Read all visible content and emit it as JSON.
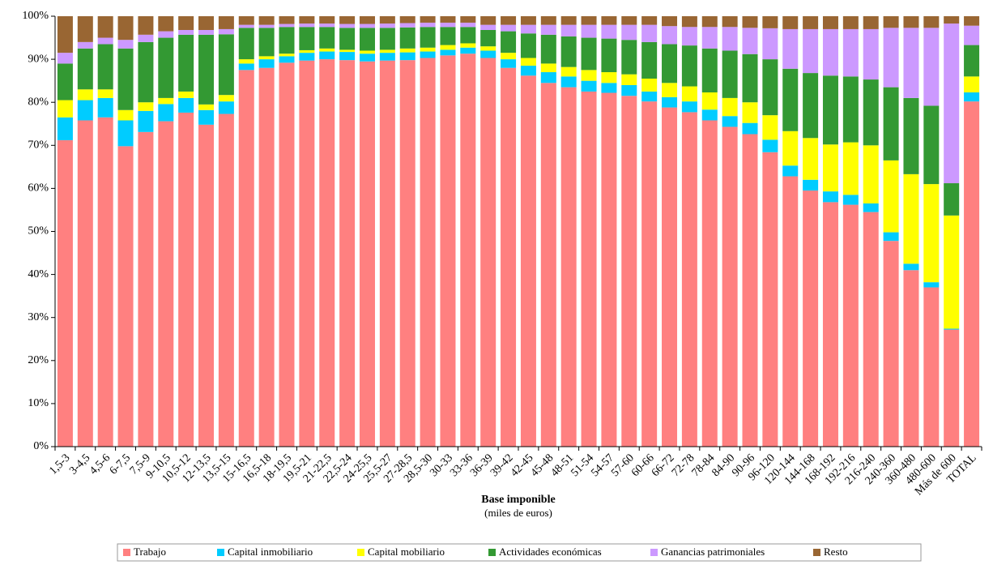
{
  "chart_data": {
    "type": "stacked_bar",
    "x_label": "Base imponible",
    "x_sublabel": "(miles de euros)",
    "categories": [
      "1,5-3",
      "3-4,5",
      "4,5-6",
      "6-7,5",
      "7,5-9",
      "9-10,5",
      "10,5-12",
      "12-13,5",
      "13,5-15",
      "15-16,5",
      "16,5-18",
      "18-19,5",
      "19,5-21",
      "21-22,5",
      "22,5-24",
      "24-25,5",
      "25,5-27",
      "27-28,5",
      "28,5-30",
      "30-33",
      "33-36",
      "36-39",
      "39-42",
      "42-45",
      "45-48",
      "48-51",
      "51-54",
      "54-57",
      "57-60",
      "60-66",
      "66-72",
      "72-78",
      "78-84",
      "84-90",
      "90-96",
      "96-120",
      "120-144",
      "144-168",
      "168-192",
      "192-216",
      "216-240",
      "240-360",
      "360-480",
      "480-600",
      "Más de 600",
      "TOTAL"
    ],
    "series": [
      {
        "name": "Trabajo",
        "color": "#ff8080",
        "values": [
          71.2,
          75.8,
          76.5,
          69.8,
          73.1,
          75.6,
          77.6,
          74.8,
          77.3,
          87.5,
          88,
          89.2,
          89.7,
          90,
          89.8,
          89.5,
          89.7,
          89.8,
          90.3,
          90.9,
          91.3,
          90.3,
          88,
          86.2,
          84.5,
          83.5,
          82.5,
          82.2,
          81.5,
          80.2,
          78.8,
          77.7,
          75.8,
          74.3,
          72.6,
          68.4,
          62.8,
          59.5,
          56.8,
          56.2,
          54.5,
          47.8,
          41,
          37,
          27.2,
          80.2
        ]
      },
      {
        "name": "Capital inmobiliario",
        "color": "#00ccff",
        "values": [
          5.3,
          4.7,
          4.5,
          6.0,
          4.9,
          4.0,
          3.4,
          3.4,
          2.9,
          1.5,
          2.0,
          1.5,
          1.8,
          1.8,
          1.9,
          1.8,
          1.8,
          1.8,
          1.5,
          1.3,
          1.4,
          1.7,
          2.0,
          2.3,
          2.5,
          2.5,
          2.5,
          2.3,
          2.5,
          2.3,
          2.4,
          2.5,
          2.5,
          2.5,
          2.6,
          2.9,
          2.5,
          2.5,
          2.5,
          2.3,
          2.0,
          2.0,
          1.5,
          1.2,
          0.2,
          2.1
        ]
      },
      {
        "name": "Capital mobiliario",
        "color": "#ffff00",
        "values": [
          4.0,
          2.5,
          2.0,
          2.4,
          2.0,
          1.4,
          1.5,
          1.3,
          1.5,
          1.0,
          0.7,
          0.6,
          0.6,
          0.7,
          0.5,
          0.7,
          0.7,
          0.9,
          0.9,
          1.1,
          1.0,
          1.0,
          1.5,
          1.8,
          2.0,
          2.2,
          2.5,
          2.5,
          2.5,
          3.0,
          3.3,
          3.5,
          4.0,
          4.2,
          4.8,
          5.7,
          8.0,
          9.7,
          10.9,
          12.2,
          13.5,
          16.7,
          20.8,
          22.8,
          26.3,
          3.7
        ]
      },
      {
        "name": "Actividades económicas",
        "color": "#339933",
        "values": [
          8.5,
          9.5,
          10.5,
          14.3,
          14,
          14,
          13.2,
          16.2,
          14.1,
          7.3,
          6.6,
          6.2,
          5.4,
          5.0,
          5.1,
          5.3,
          5.1,
          4.9,
          4.8,
          4.2,
          3.8,
          3.8,
          5.0,
          5.7,
          6.7,
          7.1,
          7.5,
          7.8,
          8.0,
          8.5,
          9.0,
          9.5,
          10.2,
          11.0,
          11.2,
          13.0,
          14.5,
          15.1,
          16.0,
          15.3,
          15.3,
          17.0,
          17.7,
          18.2,
          7.5,
          7.3
        ]
      },
      {
        "name": "Ganancias patrimoniales",
        "color": "#cc99ff",
        "values": [
          2.5,
          1.5,
          1.5,
          2.0,
          1.7,
          1.5,
          1.1,
          1.1,
          1.2,
          0.7,
          0.7,
          0.7,
          0.8,
          0.8,
          0.9,
          0.9,
          1.0,
          1.0,
          1.0,
          1.0,
          1.0,
          1.2,
          1.5,
          2.0,
          2.3,
          2.7,
          3.0,
          3.2,
          3.5,
          4.0,
          4.2,
          4.3,
          5.0,
          5.5,
          6.1,
          7.2,
          9.2,
          10.2,
          10.8,
          11.0,
          11.7,
          13.8,
          16.3,
          18.1,
          37.1,
          4.5
        ]
      },
      {
        "name": "Resto",
        "color": "#996633",
        "values": [
          8.5,
          6.0,
          5.0,
          5.5,
          4.3,
          3.5,
          3.2,
          3.2,
          3.0,
          2.0,
          2.0,
          1.8,
          1.7,
          1.7,
          1.8,
          1.8,
          1.7,
          1.6,
          1.5,
          1.5,
          1.5,
          2.0,
          2.0,
          2.0,
          2.0,
          2.0,
          2.0,
          2.0,
          2.0,
          2.0,
          2.3,
          2.5,
          2.5,
          2.5,
          2.7,
          2.8,
          3.0,
          3.0,
          3.0,
          3.0,
          3.0,
          2.7,
          2.7,
          2.7,
          1.7,
          2.2
        ]
      }
    ],
    "ylim": [
      0,
      100
    ],
    "yticks": [
      {
        "value": 0,
        "label": "0%"
      },
      {
        "value": 10,
        "label": "10%"
      },
      {
        "value": 20,
        "label": "20%"
      },
      {
        "value": 30,
        "label": "30%"
      },
      {
        "value": 40,
        "label": "40%"
      },
      {
        "value": 50,
        "label": "50%"
      },
      {
        "value": 60,
        "label": "60%"
      },
      {
        "value": 70,
        "label": "70%"
      },
      {
        "value": 80,
        "label": "80%"
      },
      {
        "value": 90,
        "label": "90%"
      },
      {
        "value": 100,
        "label": "100%"
      }
    ],
    "grid": false,
    "legend": "bottom"
  }
}
